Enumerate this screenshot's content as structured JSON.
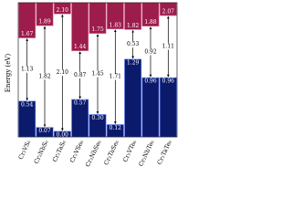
{
  "chart_data": {
    "type": "band",
    "ylabel": "Energy (eV)",
    "categories": [
      "Cr₂VS₆",
      "Cr₂NbS₆",
      "Cr₂TaS₆",
      "Cr₂VSe₆",
      "Cr₂NbSe₆",
      "Cr₂TaSe₆",
      "Cr₂VTe₆",
      "Cr₂NbTe₆",
      "Cr₂TaTe₆"
    ],
    "ylim": [
      -0.1,
      2.3
    ],
    "series": [
      {
        "color": "#9c1c4c",
        "values": [
          1.67,
          1.89,
          2.1,
          1.44,
          1.75,
          1.83,
          1.82,
          1.88,
          2.07
        ],
        "value_labels": [
          "1.67",
          "1.89",
          "2.10",
          "1.44",
          "1.75",
          "1.83",
          "1.82",
          "1.88",
          "2.07"
        ]
      },
      {
        "color": "#0c1a6c",
        "values": [
          0.54,
          0.07,
          0,
          0.57,
          0.3,
          0.12,
          1.29,
          0.96,
          0.96
        ],
        "value_labels": [
          "0.54",
          "0.07",
          "0.00",
          "0.57",
          "0.30",
          "0.12",
          "1.29",
          "0.96",
          "0.96"
        ]
      },
      {
        "color": "#000000",
        "values": [
          1.13,
          1.82,
          2.1,
          0.87,
          1.45,
          1.71,
          0.53,
          0.92,
          1.11
        ],
        "value_labels": [
          "1.13",
          "1.82",
          "2.10",
          "0.87",
          "1.45",
          "1.71",
          "0.53",
          "0.92",
          "1.11"
        ]
      }
    ]
  }
}
